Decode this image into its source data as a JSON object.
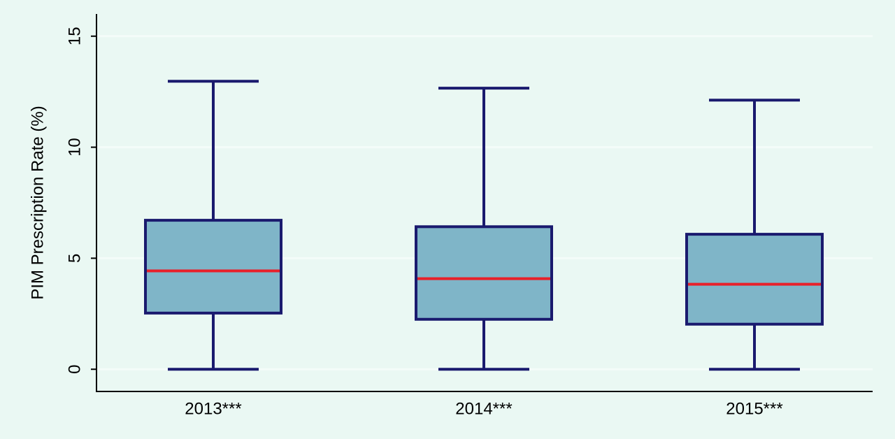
{
  "chart_data": {
    "type": "box",
    "y_label": "PIM Prescription Rate (%)",
    "categories": [
      "2013***",
      "2014***",
      "2015***"
    ],
    "whisker_low": [
      0,
      0,
      0
    ],
    "q1": [
      2.53,
      2.25,
      2.03
    ],
    "median": [
      4.43,
      4.08,
      3.83
    ],
    "q3": [
      6.71,
      6.42,
      6.08
    ],
    "whisker_high": [
      12.97,
      12.66,
      12.12
    ],
    "box_color": "#7fb5c8",
    "line_color": "#1a1a6e",
    "median_color": "#e8202a",
    "ylim": [
      -1,
      16
    ],
    "yticks": [
      0,
      5,
      10,
      15
    ],
    "grid": true
  }
}
